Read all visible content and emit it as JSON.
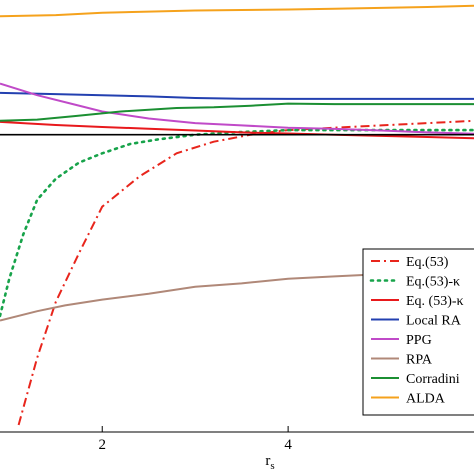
{
  "chart_data": {
    "type": "line",
    "title": "",
    "xlabel": "r",
    "xlabel_subscript": "s",
    "ylabel": "",
    "xlim": [
      0.9,
      6.0
    ],
    "ylim": [
      -1.28,
      0.58
    ],
    "x_ticks": [
      2,
      4
    ],
    "x_tick_labels": [
      "2",
      "4"
    ],
    "grid": false,
    "legend_placement": "bottom-right",
    "zero_line": 0,
    "series": [
      {
        "name": "Eq.(53)",
        "color": "#e8251c",
        "dash": "dashdot",
        "x": [
          1.1,
          1.3,
          1.5,
          1.75,
          2.0,
          2.4,
          2.8,
          3.2,
          3.6,
          4.0,
          4.5,
          5.0,
          5.5,
          6.0
        ],
        "y": [
          -1.25,
          -0.96,
          -0.72,
          -0.51,
          -0.31,
          -0.18,
          -0.08,
          -0.03,
          0.0,
          0.02,
          0.03,
          0.04,
          0.05,
          0.06
        ]
      },
      {
        "name": "Eq.(53)-κ",
        "color": "#17a34a",
        "dash": "dotted",
        "x": [
          0.9,
          1.0,
          1.15,
          1.3,
          1.5,
          1.75,
          2.0,
          2.3,
          2.6,
          3.0,
          3.4,
          4.0,
          4.5,
          5.0,
          5.5,
          6.0
        ],
        "y": [
          -0.78,
          -0.62,
          -0.43,
          -0.28,
          -0.19,
          -0.12,
          -0.08,
          -0.04,
          -0.02,
          0.0,
          0.01,
          0.02,
          0.02,
          0.02,
          0.02,
          0.02
        ]
      },
      {
        "name": "Eq. (53)-κ",
        "color": "#e8191c",
        "dash": "solid",
        "x": [
          0.9,
          1.5,
          2.0,
          2.5,
          3.0,
          3.5,
          4.0,
          4.5,
          5.0,
          5.5,
          6.0
        ],
        "y": [
          0.055,
          0.042,
          0.033,
          0.026,
          0.018,
          0.01,
          0.005,
          0.0,
          -0.005,
          -0.01,
          -0.015
        ]
      },
      {
        "name": "Local RA",
        "color": "#2340b0",
        "dash": "solid",
        "x": [
          0.9,
          1.5,
          2.0,
          2.5,
          3.0,
          3.5,
          4.0,
          5.0,
          6.0
        ],
        "y": [
          0.18,
          0.175,
          0.17,
          0.165,
          0.158,
          0.155,
          0.154,
          0.154,
          0.154
        ]
      },
      {
        "name": "PPG",
        "color": "#c04ac8",
        "dash": "solid",
        "x": [
          0.9,
          1.3,
          1.7,
          2.0,
          2.5,
          3.0,
          3.5,
          4.0,
          4.5,
          5.0,
          5.5,
          6.0
        ],
        "y": [
          0.22,
          0.17,
          0.13,
          0.1,
          0.07,
          0.05,
          0.04,
          0.03,
          0.025,
          0.018,
          0.01,
          0.004
        ]
      },
      {
        "name": "RPA",
        "color": "#b08878",
        "dash": "solid",
        "x": [
          0.9,
          1.3,
          1.6,
          2.0,
          2.5,
          3.0,
          3.5,
          4.0,
          4.5,
          5.0,
          5.5
        ],
        "y": [
          -0.8,
          -0.76,
          -0.735,
          -0.71,
          -0.685,
          -0.655,
          -0.64,
          -0.62,
          -0.61,
          -0.6,
          -0.59
        ]
      },
      {
        "name": "Corradini",
        "color": "#1b8f32",
        "dash": "solid",
        "x": [
          0.9,
          1.3,
          1.7,
          2.2,
          2.8,
          3.2,
          3.6,
          4.0,
          4.5,
          5.0,
          5.5,
          6.0
        ],
        "y": [
          0.06,
          0.065,
          0.08,
          0.1,
          0.115,
          0.118,
          0.125,
          0.134,
          0.132,
          0.132,
          0.132,
          0.132
        ]
      },
      {
        "name": "ALDA",
        "color": "#f5a21c",
        "dash": "solid",
        "x": [
          0.9,
          1.5,
          2.0,
          2.5,
          3.0,
          3.5,
          4.0,
          4.5,
          5.0,
          5.5,
          6.0
        ],
        "y": [
          0.51,
          0.515,
          0.525,
          0.53,
          0.535,
          0.537,
          0.539,
          0.542,
          0.546,
          0.55,
          0.555
        ]
      }
    ]
  }
}
